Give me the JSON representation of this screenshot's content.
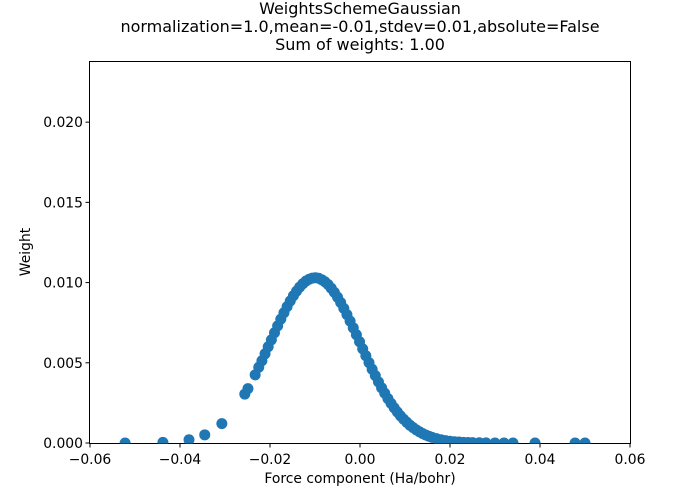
{
  "figure": {
    "background": "#ffffff"
  },
  "chart_data": {
    "type": "scatter",
    "title_lines": [
      "WeightsSchemeGaussian",
      "normalization=1.0,mean=-0.01,stdev=0.01,absolute=False",
      "Sum of weights: 1.00"
    ],
    "xlabel": "Force component (Ha/bohr)",
    "ylabel": "Weight",
    "xlim": [
      -0.06,
      0.06
    ],
    "ylim": [
      0,
      0.02375
    ],
    "x_ticks": {
      "values": [
        -0.06,
        -0.04,
        -0.02,
        0.0,
        0.02,
        0.04,
        0.06
      ],
      "labels": [
        "−0.06",
        "−0.04",
        "−0.02",
        "0.00",
        "0.02",
        "0.04",
        "0.06"
      ]
    },
    "y_ticks": {
      "values": [
        0.0,
        0.005,
        0.01,
        0.015,
        0.02
      ],
      "labels": [
        "0.000",
        "0.005",
        "0.010",
        "0.015",
        "0.020"
      ]
    },
    "grid": false,
    "legend": null,
    "axis_color": "#000000",
    "marker": {
      "color": "#1f77b4",
      "radius_px": 5.5
    },
    "gaussian_curve": {
      "amplitude": 0.0103,
      "mean": -0.01,
      "stdev": 0.01
    },
    "points": [
      [
        -0.0522,
        1.5e-06
      ],
      [
        -0.0438,
        3.8e-05
      ],
      [
        -0.038,
        0.0002
      ],
      [
        -0.0345,
        0.00051
      ],
      [
        -0.0307,
        0.00121
      ],
      [
        -0.0256,
        0.00305
      ],
      [
        -0.0249,
        0.00339
      ],
      [
        -0.0233,
        0.00425
      ],
      [
        -0.0225,
        0.00472
      ],
      [
        -0.0218,
        0.00513
      ],
      [
        -0.0211,
        0.00556
      ],
      [
        -0.0204,
        0.006
      ],
      [
        -0.0197,
        0.00643
      ],
      [
        -0.019,
        0.00687
      ],
      [
        -0.0183,
        0.0073
      ],
      [
        -0.0176,
        0.00772
      ],
      [
        -0.0169,
        0.00812
      ],
      [
        -0.0162,
        0.0085
      ],
      [
        -0.0155,
        0.00885
      ],
      [
        -0.0148,
        0.00918
      ],
      [
        -0.0141,
        0.00947
      ],
      [
        -0.0134,
        0.00972
      ],
      [
        -0.0127,
        0.00993
      ],
      [
        -0.012,
        0.0101
      ],
      [
        -0.0113,
        0.01021
      ],
      [
        -0.0106,
        0.01028
      ],
      [
        -0.0099,
        0.0103
      ],
      [
        -0.0092,
        0.01027
      ],
      [
        -0.0085,
        0.01018
      ],
      [
        -0.0078,
        0.01005
      ],
      [
        -0.0071,
        0.00988
      ],
      [
        -0.0064,
        0.00965
      ],
      [
        -0.0057,
        0.00939
      ],
      [
        -0.005,
        0.00909
      ],
      [
        -0.0043,
        0.00876
      ],
      [
        -0.0036,
        0.00839
      ],
      [
        -0.0029,
        0.008
      ],
      [
        -0.0022,
        0.0076
      ],
      [
        -0.0015,
        0.00718
      ],
      [
        -0.0008,
        0.00675
      ],
      [
        -0.0001,
        0.00631
      ],
      [
        0.0006,
        0.00587
      ],
      [
        0.0013,
        0.00544
      ],
      [
        0.002,
        0.00501
      ],
      [
        0.0027,
        0.0046
      ],
      [
        0.0034,
        0.0042
      ],
      [
        0.0041,
        0.00381
      ],
      [
        0.0048,
        0.00344
      ],
      [
        0.0055,
        0.0031
      ],
      [
        0.0062,
        0.00277
      ],
      [
        0.0069,
        0.00247
      ],
      [
        0.0076,
        0.00219
      ],
      [
        0.0083,
        0.00193
      ],
      [
        0.009,
        0.00169
      ],
      [
        0.0097,
        0.00148
      ],
      [
        0.0104,
        0.00129
      ],
      [
        0.0111,
        0.00111
      ],
      [
        0.0118,
        0.00096
      ],
      [
        0.0125,
        0.00082
      ],
      [
        0.0132,
        0.0007
      ],
      [
        0.0139,
        0.00059
      ],
      [
        0.0146,
        0.0005
      ],
      [
        0.0153,
        0.00042
      ],
      [
        0.016,
        0.00035
      ],
      [
        0.017,
        0.00027
      ],
      [
        0.018,
        0.0002
      ],
      [
        0.019,
        0.00015
      ],
      [
        0.02,
        0.00011
      ],
      [
        0.021,
        8e-05
      ],
      [
        0.022,
        6e-05
      ],
      [
        0.023,
        4e-05
      ],
      [
        0.024,
        3e-05
      ],
      [
        0.025,
        2.2e-05
      ],
      [
        0.0265,
        1.2e-05
      ],
      [
        0.028,
        6.5e-06
      ],
      [
        0.03,
        2.1e-06
      ],
      [
        0.032,
        6e-07
      ],
      [
        0.034,
        2e-07
      ],
      [
        0.0389,
        0.0
      ],
      [
        0.0478,
        0.0
      ],
      [
        0.05,
        0.0
      ]
    ]
  }
}
